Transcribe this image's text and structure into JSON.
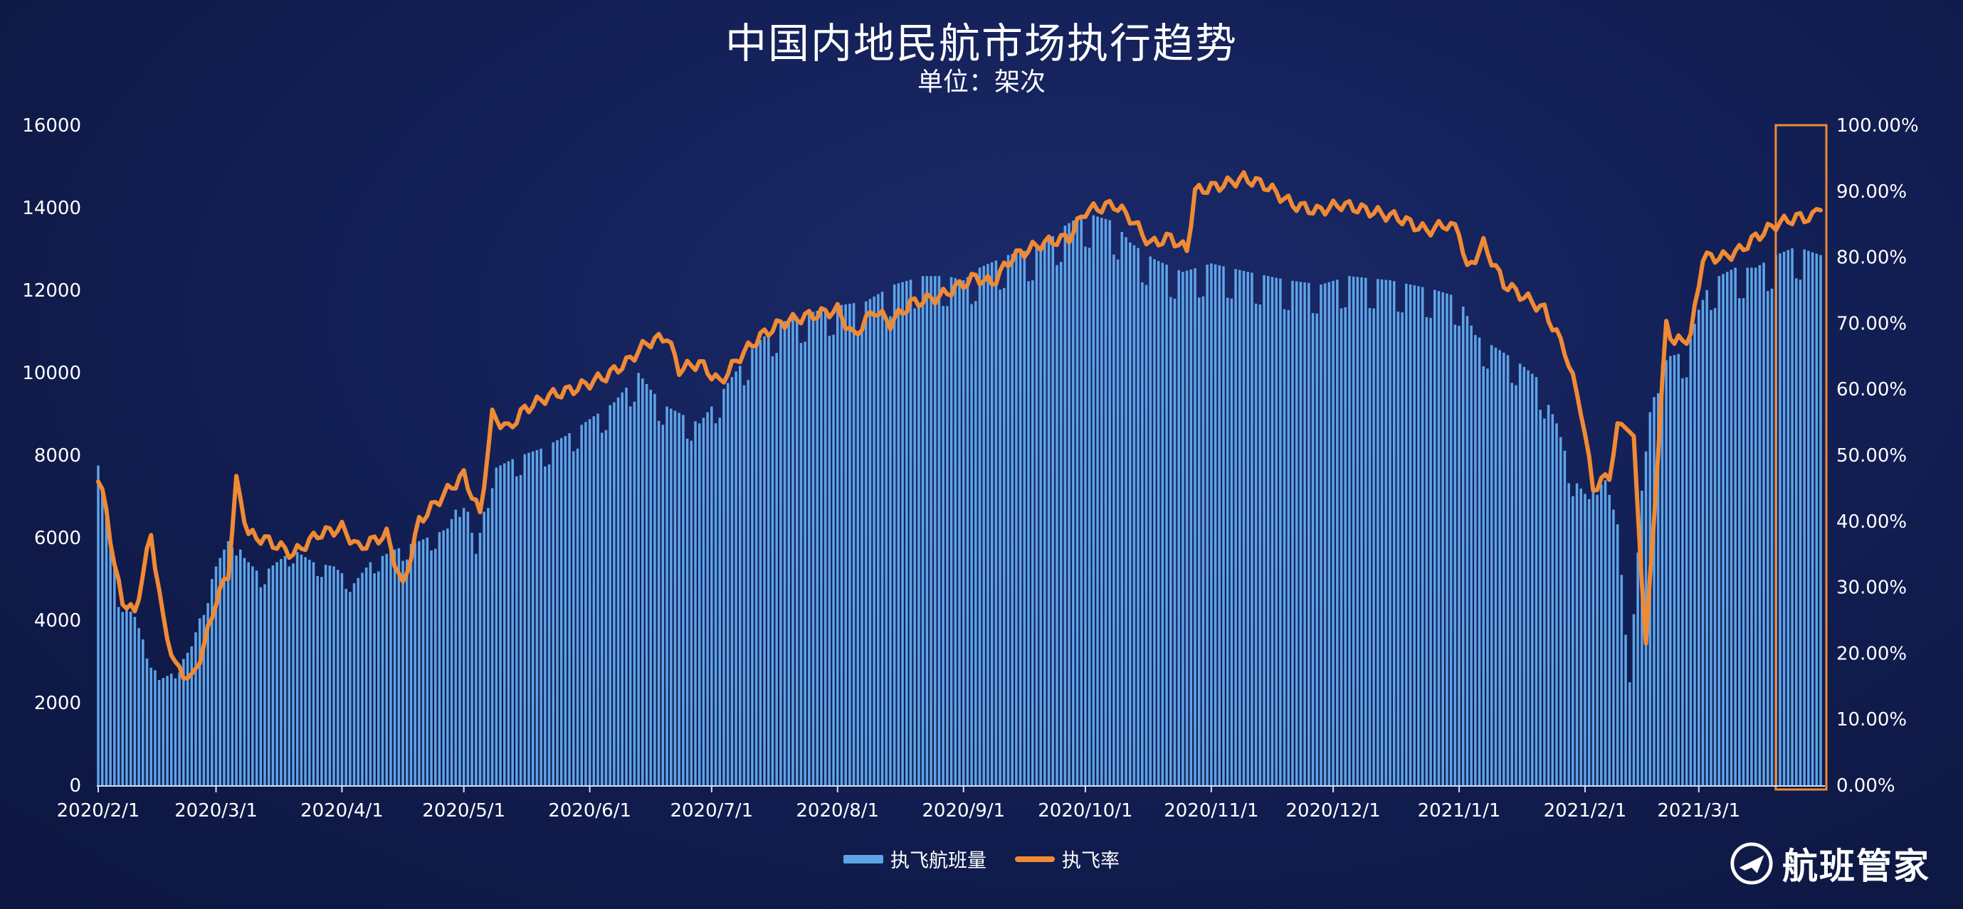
{
  "title": "中国内地民航市场执行趋势",
  "subtitle": "单位：架次",
  "legend": {
    "bar_label": "执飞航班量",
    "line_label": "执飞率"
  },
  "brand": {
    "name": "航班管家"
  },
  "colors": {
    "bar": "#5ea3e6",
    "line": "#f08a35",
    "highlight": "#f08a35"
  },
  "chart_data": {
    "type": "bar+line",
    "x_ticks": [
      "2020/2/1",
      "2020/3/1",
      "2020/4/1",
      "2020/5/1",
      "2020/6/1",
      "2020/7/1",
      "2020/8/1",
      "2020/9/1",
      "2020/10/1",
      "2020/11/1",
      "2020/12/1",
      "2021/1/1",
      "2021/2/1",
      "2021/3/1"
    ],
    "y_left": {
      "min": 0,
      "max": 16000,
      "ticks": [
        "0",
        "2000",
        "4000",
        "6000",
        "8000",
        "10000",
        "12000",
        "14000",
        "16000"
      ]
    },
    "y_right": {
      "min": 0,
      "max": 100,
      "ticks": [
        "0.00%",
        "10.00%",
        "20.00%",
        "30.00%",
        "40.00%",
        "50.00%",
        "60.00%",
        "70.00%",
        "80.00%",
        "90.00%",
        "100.00%"
      ]
    },
    "date_range": [
      "2020-02-01",
      "2021-03-31"
    ],
    "highlight": {
      "from": "2021-03-21",
      "to": "2021-03-31"
    },
    "series": [
      {
        "name": "执飞航班量",
        "kind": "bar",
        "anchors": [
          [
            "2020-02-01",
            7600
          ],
          [
            "2020-02-03",
            6500
          ],
          [
            "2020-02-06",
            4500
          ],
          [
            "2020-02-10",
            4000
          ],
          [
            "2020-02-13",
            3200
          ],
          [
            "2020-02-16",
            2500
          ],
          [
            "2020-02-20",
            2700
          ],
          [
            "2020-02-24",
            3300
          ],
          [
            "2020-02-27",
            4300
          ],
          [
            "2020-03-01",
            5200
          ],
          [
            "2020-03-05",
            6000
          ],
          [
            "2020-03-08",
            5400
          ],
          [
            "2020-03-12",
            5000
          ],
          [
            "2020-03-16",
            5300
          ],
          [
            "2020-03-20",
            5600
          ],
          [
            "2020-03-25",
            5300
          ],
          [
            "2020-03-30",
            5200
          ],
          [
            "2020-04-04",
            4800
          ],
          [
            "2020-04-08",
            5300
          ],
          [
            "2020-04-14",
            5600
          ],
          [
            "2020-04-20",
            5800
          ],
          [
            "2020-04-27",
            6100
          ],
          [
            "2020-05-01",
            7000
          ],
          [
            "2020-05-04",
            5500
          ],
          [
            "2020-05-08",
            7500
          ],
          [
            "2020-05-14",
            7800
          ],
          [
            "2020-05-20",
            8000
          ],
          [
            "2020-05-26",
            8300
          ],
          [
            "2020-06-01",
            8700
          ],
          [
            "2020-06-07",
            9100
          ],
          [
            "2020-06-13",
            9800
          ],
          [
            "2020-06-16",
            9400
          ],
          [
            "2020-06-20",
            9000
          ],
          [
            "2020-06-24",
            8800
          ],
          [
            "2020-06-28",
            8600
          ],
          [
            "2020-07-01",
            9000
          ],
          [
            "2020-07-06",
            9700
          ],
          [
            "2020-07-12",
            10500
          ],
          [
            "2020-07-18",
            11000
          ],
          [
            "2020-07-24",
            11200
          ],
          [
            "2020-08-01",
            11400
          ],
          [
            "2020-08-08",
            11500
          ],
          [
            "2020-08-15",
            11900
          ],
          [
            "2020-08-22",
            12100
          ],
          [
            "2020-08-28",
            12100
          ],
          [
            "2020-09-01",
            12000
          ],
          [
            "2020-09-05",
            12300
          ],
          [
            "2020-09-12",
            12600
          ],
          [
            "2020-09-20",
            12800
          ],
          [
            "2020-09-26",
            13300
          ],
          [
            "2020-10-01",
            13600
          ],
          [
            "2020-10-08",
            13400
          ],
          [
            "2020-10-12",
            12900
          ],
          [
            "2020-10-18",
            12500
          ],
          [
            "2020-10-25",
            12200
          ],
          [
            "2020-11-01",
            12400
          ],
          [
            "2020-11-10",
            12200
          ],
          [
            "2020-11-20",
            12000
          ],
          [
            "2020-11-28",
            11900
          ],
          [
            "2020-12-05",
            12100
          ],
          [
            "2020-12-15",
            12000
          ],
          [
            "2020-12-25",
            11800
          ],
          [
            "2021-01-01",
            11600
          ],
          [
            "2021-01-05",
            10700
          ],
          [
            "2021-01-10",
            10400
          ],
          [
            "2021-01-15",
            10100
          ],
          [
            "2021-01-20",
            9700
          ],
          [
            "2021-01-25",
            8600
          ],
          [
            "2021-01-29",
            7300
          ],
          [
            "2021-02-02",
            6800
          ],
          [
            "2021-02-05",
            7600
          ],
          [
            "2021-02-09",
            6200
          ],
          [
            "2021-02-12",
            2600
          ],
          [
            "2021-02-15",
            7000
          ],
          [
            "2021-02-18",
            9800
          ],
          [
            "2021-02-22",
            10200
          ],
          [
            "2021-02-26",
            10300
          ],
          [
            "2021-03-01",
            11300
          ],
          [
            "2021-03-04",
            12000
          ],
          [
            "2021-03-10",
            12300
          ],
          [
            "2021-03-15",
            12300
          ],
          [
            "2021-03-20",
            12600
          ],
          [
            "2021-03-25",
            12800
          ],
          [
            "2021-03-31",
            12600
          ]
        ]
      },
      {
        "name": "执飞率",
        "kind": "line",
        "anchors": [
          [
            "2020-02-01",
            46
          ],
          [
            "2020-02-03",
            42
          ],
          [
            "2020-02-05",
            33
          ],
          [
            "2020-02-07",
            28
          ],
          [
            "2020-02-10",
            26
          ],
          [
            "2020-02-14",
            38
          ],
          [
            "2020-02-17",
            25
          ],
          [
            "2020-02-20",
            18
          ],
          [
            "2020-02-24",
            16
          ],
          [
            "2020-02-27",
            21
          ],
          [
            "2020-03-01",
            28
          ],
          [
            "2020-03-04",
            32
          ],
          [
            "2020-03-06",
            46
          ],
          [
            "2020-03-09",
            38
          ],
          [
            "2020-03-14",
            37
          ],
          [
            "2020-03-20",
            35
          ],
          [
            "2020-03-26",
            38
          ],
          [
            "2020-04-01",
            39
          ],
          [
            "2020-04-05",
            36
          ],
          [
            "2020-04-12",
            38
          ],
          [
            "2020-04-16",
            30
          ],
          [
            "2020-04-20",
            40
          ],
          [
            "2020-04-26",
            44
          ],
          [
            "2020-05-01",
            47
          ],
          [
            "2020-05-05",
            41
          ],
          [
            "2020-05-08",
            56
          ],
          [
            "2020-05-12",
            54
          ],
          [
            "2020-05-16",
            57
          ],
          [
            "2020-05-22",
            59
          ],
          [
            "2020-05-28",
            60
          ],
          [
            "2020-06-05",
            62
          ],
          [
            "2020-06-10",
            64
          ],
          [
            "2020-06-15",
            67
          ],
          [
            "2020-06-20",
            68
          ],
          [
            "2020-06-23",
            63
          ],
          [
            "2020-06-28",
            64
          ],
          [
            "2020-07-03",
            61
          ],
          [
            "2020-07-08",
            65
          ],
          [
            "2020-07-13",
            68
          ],
          [
            "2020-07-18",
            70
          ],
          [
            "2020-07-24",
            71
          ],
          [
            "2020-08-01",
            72
          ],
          [
            "2020-08-05",
            68
          ],
          [
            "2020-08-10",
            72
          ],
          [
            "2020-08-14",
            70
          ],
          [
            "2020-08-19",
            73
          ],
          [
            "2020-08-26",
            74
          ],
          [
            "2020-09-01",
            76
          ],
          [
            "2020-09-04",
            77
          ],
          [
            "2020-09-08",
            76
          ],
          [
            "2020-09-13",
            80
          ],
          [
            "2020-09-20",
            82
          ],
          [
            "2020-09-27",
            83
          ],
          [
            "2020-10-01",
            87
          ],
          [
            "2020-10-08",
            88
          ],
          [
            "2020-10-12",
            86
          ],
          [
            "2020-10-17",
            82
          ],
          [
            "2020-10-22",
            83
          ],
          [
            "2020-10-26",
            81
          ],
          [
            "2020-10-28",
            90
          ],
          [
            "2020-11-04",
            91
          ],
          [
            "2020-11-09",
            92
          ],
          [
            "2020-11-14",
            91
          ],
          [
            "2020-11-21",
            88
          ],
          [
            "2020-11-27",
            87
          ],
          [
            "2020-12-03",
            88
          ],
          [
            "2020-12-10",
            87
          ],
          [
            "2020-12-17",
            86
          ],
          [
            "2020-12-24",
            84
          ],
          [
            "2020-12-29",
            85
          ],
          [
            "2021-01-01",
            84
          ],
          [
            "2021-01-03",
            78
          ],
          [
            "2021-01-07",
            82
          ],
          [
            "2021-01-12",
            76
          ],
          [
            "2021-01-17",
            74
          ],
          [
            "2021-01-22",
            72
          ],
          [
            "2021-01-27",
            66
          ],
          [
            "2021-01-31",
            57
          ],
          [
            "2021-02-03",
            45
          ],
          [
            "2021-02-07",
            47
          ],
          [
            "2021-02-09",
            54
          ],
          [
            "2021-02-11",
            55
          ],
          [
            "2021-02-13",
            52
          ],
          [
            "2021-02-16",
            21
          ],
          [
            "2021-02-18",
            41
          ],
          [
            "2021-02-21",
            70
          ],
          [
            "2021-02-23",
            67
          ],
          [
            "2021-02-27",
            68
          ],
          [
            "2021-03-02",
            80
          ],
          [
            "2021-03-07",
            80
          ],
          [
            "2021-03-11",
            81
          ],
          [
            "2021-03-15",
            83
          ],
          [
            "2021-03-20",
            85
          ],
          [
            "2021-03-25",
            86
          ],
          [
            "2021-03-29",
            86
          ],
          [
            "2021-03-31",
            88
          ]
        ]
      }
    ]
  }
}
